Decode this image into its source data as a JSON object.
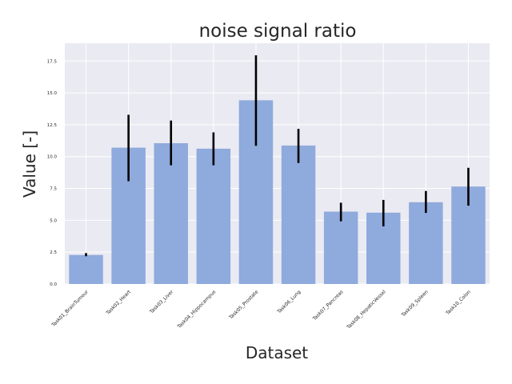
{
  "chart_data": {
    "type": "bar",
    "title": "noise signal ratio",
    "xlabel": "Dataset",
    "ylabel": "Value [-]",
    "categories": [
      "Task01_BrainTumour",
      "Task02_Heart",
      "Task03_Liver",
      "Task04_Hippocampus",
      "Task05_Prostate",
      "Task06_Lung",
      "Task07_Pancreas",
      "Task08_HepaticVessel",
      "Task09_Spleen",
      "Task10_Colon"
    ],
    "values": [
      2.28,
      10.7,
      11.05,
      10.62,
      14.42,
      10.87,
      5.68,
      5.6,
      6.42,
      7.65
    ],
    "error_low": [
      2.18,
      8.07,
      9.32,
      9.32,
      10.85,
      9.5,
      4.92,
      4.52,
      5.58,
      6.15
    ],
    "error_high": [
      2.43,
      13.28,
      12.83,
      11.9,
      17.95,
      12.18,
      6.38,
      6.6,
      7.3,
      9.12
    ],
    "yticks": [
      0.0,
      2.5,
      5.0,
      7.5,
      10.0,
      12.5,
      15.0,
      17.5
    ],
    "ytick_labels": [
      "0.0",
      "2.5",
      "5.0",
      "7.5",
      "10.0",
      "12.5",
      "15.0",
      "17.5"
    ],
    "ylim": [
      0,
      18.9
    ],
    "grid": true,
    "colors": {
      "bar": "#8faadc",
      "error_bar": "#000000",
      "plot_background": "#eaeaf2",
      "grid": "#ffffff",
      "text": "#262626"
    }
  }
}
